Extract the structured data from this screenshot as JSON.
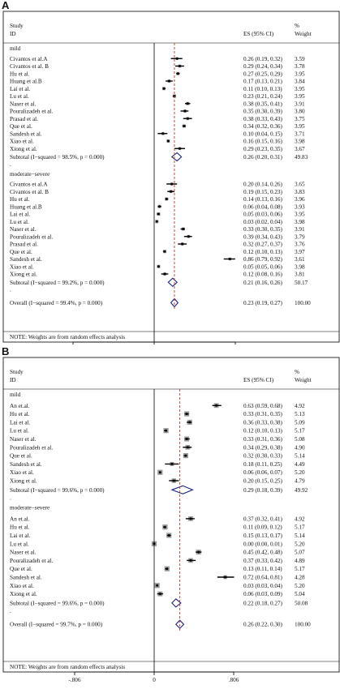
{
  "panels": [
    {
      "letter": "A",
      "header": {
        "study": "Study",
        "id": "ID",
        "es": "ES (95% CI)",
        "pct": "%",
        "weight": "Weight"
      },
      "axis": {
        "min": -0.922,
        "max": 0.922,
        "ticks": [
          "-.922",
          "0",
          ".922"
        ],
        "overall_es": 0.23
      },
      "groups": [
        {
          "name": "mild",
          "rows": [
            {
              "study": "Civantos et al.A",
              "es": 0.26,
              "lo": 0.19,
              "hi": 0.32,
              "ci": "0.26 (0.19, 0.32)",
              "weight": "3.59"
            },
            {
              "study": "Civantos et al. B",
              "es": 0.29,
              "lo": 0.24,
              "hi": 0.34,
              "ci": "0.29 (0.24, 0.34)",
              "weight": "3.78"
            },
            {
              "study": "Hu et al.",
              "es": 0.27,
              "lo": 0.25,
              "hi": 0.29,
              "ci": "0.27 (0.25, 0.29)",
              "weight": "3.95"
            },
            {
              "study": "Huang et al.B",
              "es": 0.17,
              "lo": 0.13,
              "hi": 0.21,
              "ci": "0.17 (0.13, 0.21)",
              "weight": "3.84"
            },
            {
              "study": "Lai et al.",
              "es": 0.11,
              "lo": 0.1,
              "hi": 0.13,
              "ci": "0.11 (0.10, 0.13)",
              "weight": "3.95"
            },
            {
              "study": "Lu et al.",
              "es": 0.23,
              "lo": 0.21,
              "hi": 0.24,
              "ci": "0.23 (0.21, 0.24)",
              "weight": "3.95"
            },
            {
              "study": "Naser et al.",
              "es": 0.38,
              "lo": 0.35,
              "hi": 0.41,
              "ci": "0.38 (0.35, 0.41)",
              "weight": "3.91"
            },
            {
              "study": "Pouralizadeh et al.",
              "es": 0.35,
              "lo": 0.3,
              "hi": 0.39,
              "ci": "0.35 (0.30, 0.39)",
              "weight": "3.80"
            },
            {
              "study": "Prasad et al.",
              "es": 0.38,
              "lo": 0.33,
              "hi": 0.43,
              "ci": "0.38 (0.33, 0.43)",
              "weight": "3.75"
            },
            {
              "study": "Que et al.",
              "es": 0.34,
              "lo": 0.32,
              "hi": 0.36,
              "ci": "0.34 (0.32, 0.36)",
              "weight": "3.95"
            },
            {
              "study": "Sandesh et al.",
              "es": 0.1,
              "lo": 0.04,
              "hi": 0.15,
              "ci": "0.10 (0.04, 0.15)",
              "weight": "3.71"
            },
            {
              "study": "Xiao et al.",
              "es": 0.16,
              "lo": 0.15,
              "hi": 0.16,
              "ci": "0.16 (0.15, 0.16)",
              "weight": "3.98"
            },
            {
              "study": "Xiong et al.",
              "es": 0.29,
              "lo": 0.23,
              "hi": 0.35,
              "ci": "0.29 (0.23, 0.35)",
              "weight": "3.67"
            }
          ],
          "subtotal": {
            "label": "Subtotal  (I−squared = 98.5%, p = 0.000)",
            "es": 0.26,
            "lo": 0.2,
            "hi": 0.31,
            "ci": "0.26 (0.20, 0.31)",
            "weight": "49.83"
          }
        },
        {
          "name": "moderate−severe",
          "rows": [
            {
              "study": "Civantos et al.A",
              "es": 0.2,
              "lo": 0.14,
              "hi": 0.26,
              "ci": "0.20 (0.14, 0.26)",
              "weight": "3.65"
            },
            {
              "study": "Civantos et al. B",
              "es": 0.19,
              "lo": 0.15,
              "hi": 0.23,
              "ci": "0.19 (0.15, 0.23)",
              "weight": "3.83"
            },
            {
              "study": "Hu et al.",
              "es": 0.14,
              "lo": 0.13,
              "hi": 0.16,
              "ci": "0.14 (0.13, 0.16)",
              "weight": "3.96"
            },
            {
              "study": "Huang et al.B",
              "es": 0.06,
              "lo": 0.04,
              "hi": 0.08,
              "ci": "0.06 (0.04, 0.08)",
              "weight": "3.93"
            },
            {
              "study": "Lai et al.",
              "es": 0.05,
              "lo": 0.03,
              "hi": 0.06,
              "ci": "0.05 (0.03, 0.06)",
              "weight": "3.95"
            },
            {
              "study": "Lu et al.",
              "es": 0.03,
              "lo": 0.02,
              "hi": 0.04,
              "ci": "0.03 (0.02, 0.04)",
              "weight": "3.98"
            },
            {
              "study": "Naser et al.",
              "es": 0.33,
              "lo": 0.3,
              "hi": 0.35,
              "ci": "0.33 (0.30, 0.35)",
              "weight": "3.91"
            },
            {
              "study": "Pouralizadeh et al.",
              "es": 0.39,
              "lo": 0.34,
              "hi": 0.43,
              "ci": "0.39 (0.34, 0.43)",
              "weight": "3.79"
            },
            {
              "study": "Prasad et al.",
              "es": 0.32,
              "lo": 0.27,
              "hi": 0.37,
              "ci": "0.32 (0.27, 0.37)",
              "weight": "3.76"
            },
            {
              "study": "Que et al.",
              "es": 0.12,
              "lo": 0.1,
              "hi": 0.13,
              "ci": "0.12 (0.10, 0.13)",
              "weight": "3.97"
            },
            {
              "study": "Sandesh et al.",
              "es": 0.86,
              "lo": 0.79,
              "hi": 0.92,
              "ci": "0.86 (0.79, 0.92)",
              "weight": "3.61"
            },
            {
              "study": "Xiao et al.",
              "es": 0.05,
              "lo": 0.05,
              "hi": 0.06,
              "ci": "0.05 (0.05, 0.06)",
              "weight": "3.98"
            },
            {
              "study": "Xiong et al.",
              "es": 0.12,
              "lo": 0.08,
              "hi": 0.16,
              "ci": "0.12 (0.08, 0.16)",
              "weight": "3.81"
            }
          ],
          "subtotal": {
            "label": "Subtotal  (I−squared = 99.2%, p = 0.000)",
            "es": 0.21,
            "lo": 0.16,
            "hi": 0.26,
            "ci": "0.21 (0.16, 0.26)",
            "weight": "50.17"
          }
        }
      ],
      "overall": {
        "label": "Overall  (I−squared = 99.4%, p = 0.000)",
        "es": 0.23,
        "lo": 0.19,
        "hi": 0.27,
        "ci": "0.23 (0.19, 0.27)",
        "weight": "100.00"
      },
      "note": "NOTE: Weights are from random effects analysis"
    },
    {
      "letter": "B",
      "header": {
        "study": "Study",
        "id": "ID",
        "es": "ES (95% CI)",
        "pct": "%",
        "weight": "Weight"
      },
      "axis": {
        "min": -0.806,
        "max": 0.806,
        "ticks": [
          "-.806",
          "0",
          ".806"
        ],
        "overall_es": 0.26
      },
      "groups": [
        {
          "name": "mild",
          "rows": [
            {
              "study": "An et.al.",
              "es": 0.63,
              "lo": 0.59,
              "hi": 0.68,
              "ci": "0.63 (0.59, 0.68)",
              "weight": "4.92"
            },
            {
              "study": "Hu et al.",
              "es": 0.33,
              "lo": 0.31,
              "hi": 0.35,
              "ci": "0.33 (0.31, 0.35)",
              "weight": "5.13"
            },
            {
              "study": "Lai et al.",
              "es": 0.36,
              "lo": 0.33,
              "hi": 0.38,
              "ci": "0.36 (0.33, 0.38)",
              "weight": "5.09"
            },
            {
              "study": "Lu et al.",
              "es": 0.12,
              "lo": 0.1,
              "hi": 0.13,
              "ci": "0.12 (0.10, 0.13)",
              "weight": "5.17"
            },
            {
              "study": "Naser et al.",
              "es": 0.33,
              "lo": 0.31,
              "hi": 0.36,
              "ci": "0.33 (0.31, 0.36)",
              "weight": "5.08"
            },
            {
              "study": "Pouralizadeh et al.",
              "es": 0.34,
              "lo": 0.29,
              "hi": 0.38,
              "ci": "0.34 (0.29, 0.38)",
              "weight": "4.90"
            },
            {
              "study": "Que et al.",
              "es": 0.32,
              "lo": 0.3,
              "hi": 0.33,
              "ci": "0.32 (0.30, 0.33)",
              "weight": "5.14"
            },
            {
              "study": "Sandesh et al.",
              "es": 0.18,
              "lo": 0.11,
              "hi": 0.25,
              "ci": "0.18 (0.11, 0.25)",
              "weight": "4.49"
            },
            {
              "study": "Xiao et al.",
              "es": 0.06,
              "lo": 0.06,
              "hi": 0.07,
              "ci": "0.06 (0.06, 0.07)",
              "weight": "5.20"
            },
            {
              "study": "Xiong et al.",
              "es": 0.2,
              "lo": 0.15,
              "hi": 0.25,
              "ci": "0.20 (0.15, 0.25)",
              "weight": "4.79"
            }
          ],
          "subtotal": {
            "label": "Subtotal  (I−squared = 99.6%, p = 0.000)",
            "es": 0.29,
            "lo": 0.18,
            "hi": 0.39,
            "ci": "0.29 (0.18, 0.39)",
            "weight": "49.92"
          }
        },
        {
          "name": "moderate−severe",
          "rows": [
            {
              "study": "An et.al.",
              "es": 0.37,
              "lo": 0.32,
              "hi": 0.41,
              "ci": "0.37 (0.32, 0.41)",
              "weight": "4.92"
            },
            {
              "study": "Hu et al.",
              "es": 0.11,
              "lo": 0.09,
              "hi": 0.12,
              "ci": "0.11 (0.09, 0.12)",
              "weight": "5.17"
            },
            {
              "study": "Lai et al.",
              "es": 0.15,
              "lo": 0.13,
              "hi": 0.17,
              "ci": "0.15 (0.13, 0.17)",
              "weight": "5.14"
            },
            {
              "study": "Lu et al.",
              "es": 0.0,
              "lo": 0.0,
              "hi": 0.01,
              "ci": "0.00 (0.00, 0.01)",
              "weight": "5.20"
            },
            {
              "study": "Naser et al.",
              "es": 0.45,
              "lo": 0.42,
              "hi": 0.48,
              "ci": "0.45 (0.42, 0.48)",
              "weight": "5.07"
            },
            {
              "study": "Pouralizadeh et al.",
              "es": 0.37,
              "lo": 0.33,
              "hi": 0.42,
              "ci": "0.37 (0.33, 0.42)",
              "weight": "4.89"
            },
            {
              "study": "Que et al.",
              "es": 0.13,
              "lo": 0.11,
              "hi": 0.14,
              "ci": "0.13 (0.11, 0.14)",
              "weight": "5.17"
            },
            {
              "study": "Sandesh et al.",
              "es": 0.72,
              "lo": 0.64,
              "hi": 0.81,
              "ci": "0.72 (0.64, 0.81)",
              "weight": "4.28"
            },
            {
              "study": "Xiao et al.",
              "es": 0.03,
              "lo": 0.03,
              "hi": 0.04,
              "ci": "0.03 (0.03, 0.04)",
              "weight": "5.20"
            },
            {
              "study": "Xiong et al.",
              "es": 0.06,
              "lo": 0.03,
              "hi": 0.09,
              "ci": "0.06 (0.03, 0.09)",
              "weight": "5.04"
            }
          ],
          "subtotal": {
            "label": "Subtotal  (I−squared = 99.6%, p = 0.000)",
            "es": 0.22,
            "lo": 0.18,
            "hi": 0.27,
            "ci": "0.22 (0.18, 0.27)",
            "weight": "50.08"
          }
        }
      ],
      "overall": {
        "label": "Overall  (I−squared = 99.7%, p = 0.000)",
        "es": 0.26,
        "lo": 0.22,
        "hi": 0.3,
        "ci": "0.26 (0.22, 0.30)",
        "weight": "100.00"
      },
      "note": "NOTE: Weights are from random effects analysis"
    }
  ],
  "chart_data": [
    {
      "type": "forest",
      "panel": "A",
      "xlim": [
        -0.922,
        0.922
      ],
      "xticks": [
        -0.922,
        0,
        0.922
      ],
      "reference_line": 0.23,
      "columns": [
        "Study ID",
        "ES (95% CI)",
        "% Weight"
      ],
      "subgroups": [
        "mild",
        "moderate−severe"
      ],
      "overall": {
        "es": 0.23,
        "lo": 0.19,
        "hi": 0.27,
        "weight": 100.0
      }
    },
    {
      "type": "forest",
      "panel": "B",
      "xlim": [
        -0.806,
        0.806
      ],
      "xticks": [
        -0.806,
        0,
        0.806
      ],
      "reference_line": 0.26,
      "columns": [
        "Study ID",
        "ES (95% CI)",
        "% Weight"
      ],
      "subgroups": [
        "mild",
        "moderate−severe"
      ],
      "overall": {
        "es": 0.26,
        "lo": 0.22,
        "hi": 0.3,
        "weight": 100.0
      }
    }
  ]
}
